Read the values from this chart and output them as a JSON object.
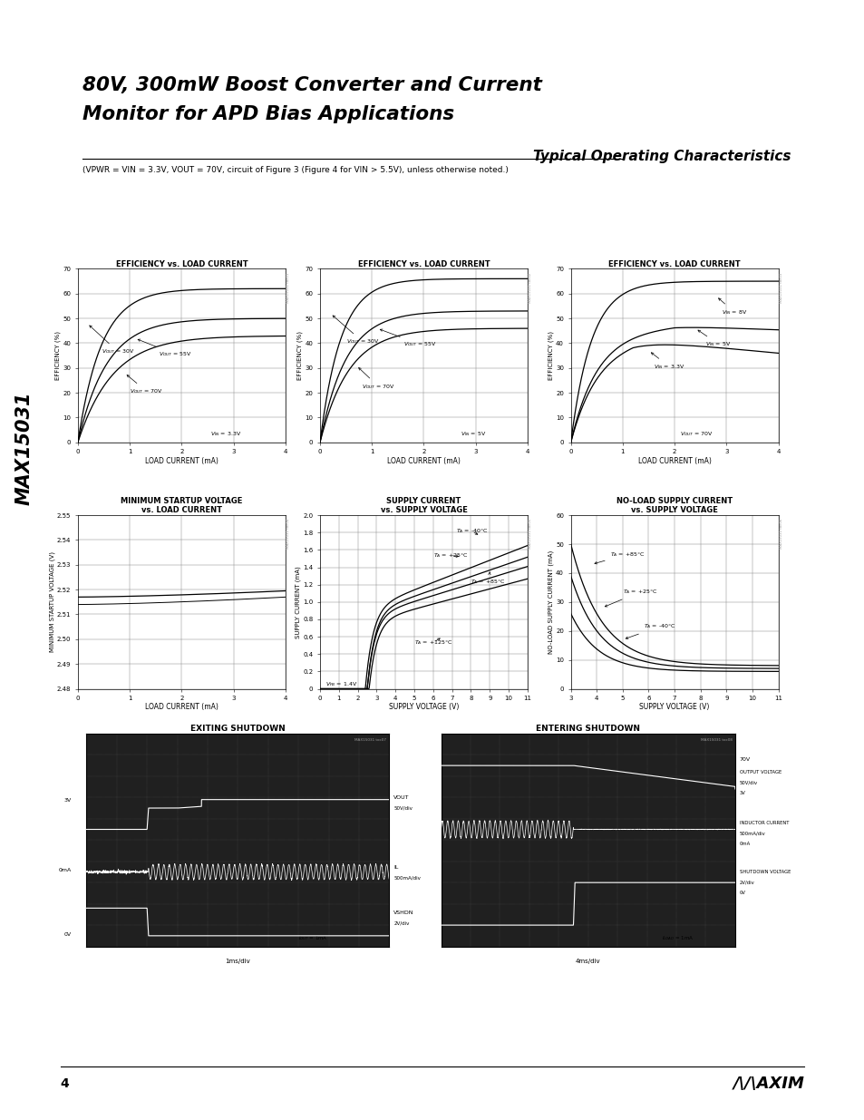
{
  "title_line1": "80V, 300mW Boost Converter and Current",
  "title_line2": "Monitor for APD Bias Applications",
  "subtitle": "Typical Operating Characteristics",
  "subtitle_note": "(VPWR = VIN = 3.3V, VOUT = 70V, circuit of Figure 3 (Figure 4 for VIN > 5.5V), unless otherwise noted.)",
  "side_label": "MAX15031",
  "page_num": "4",
  "bg_color": "#ffffff",
  "plot_bg": "#ffffff",
  "grid_color": "#888888",
  "line_color": "#000000"
}
